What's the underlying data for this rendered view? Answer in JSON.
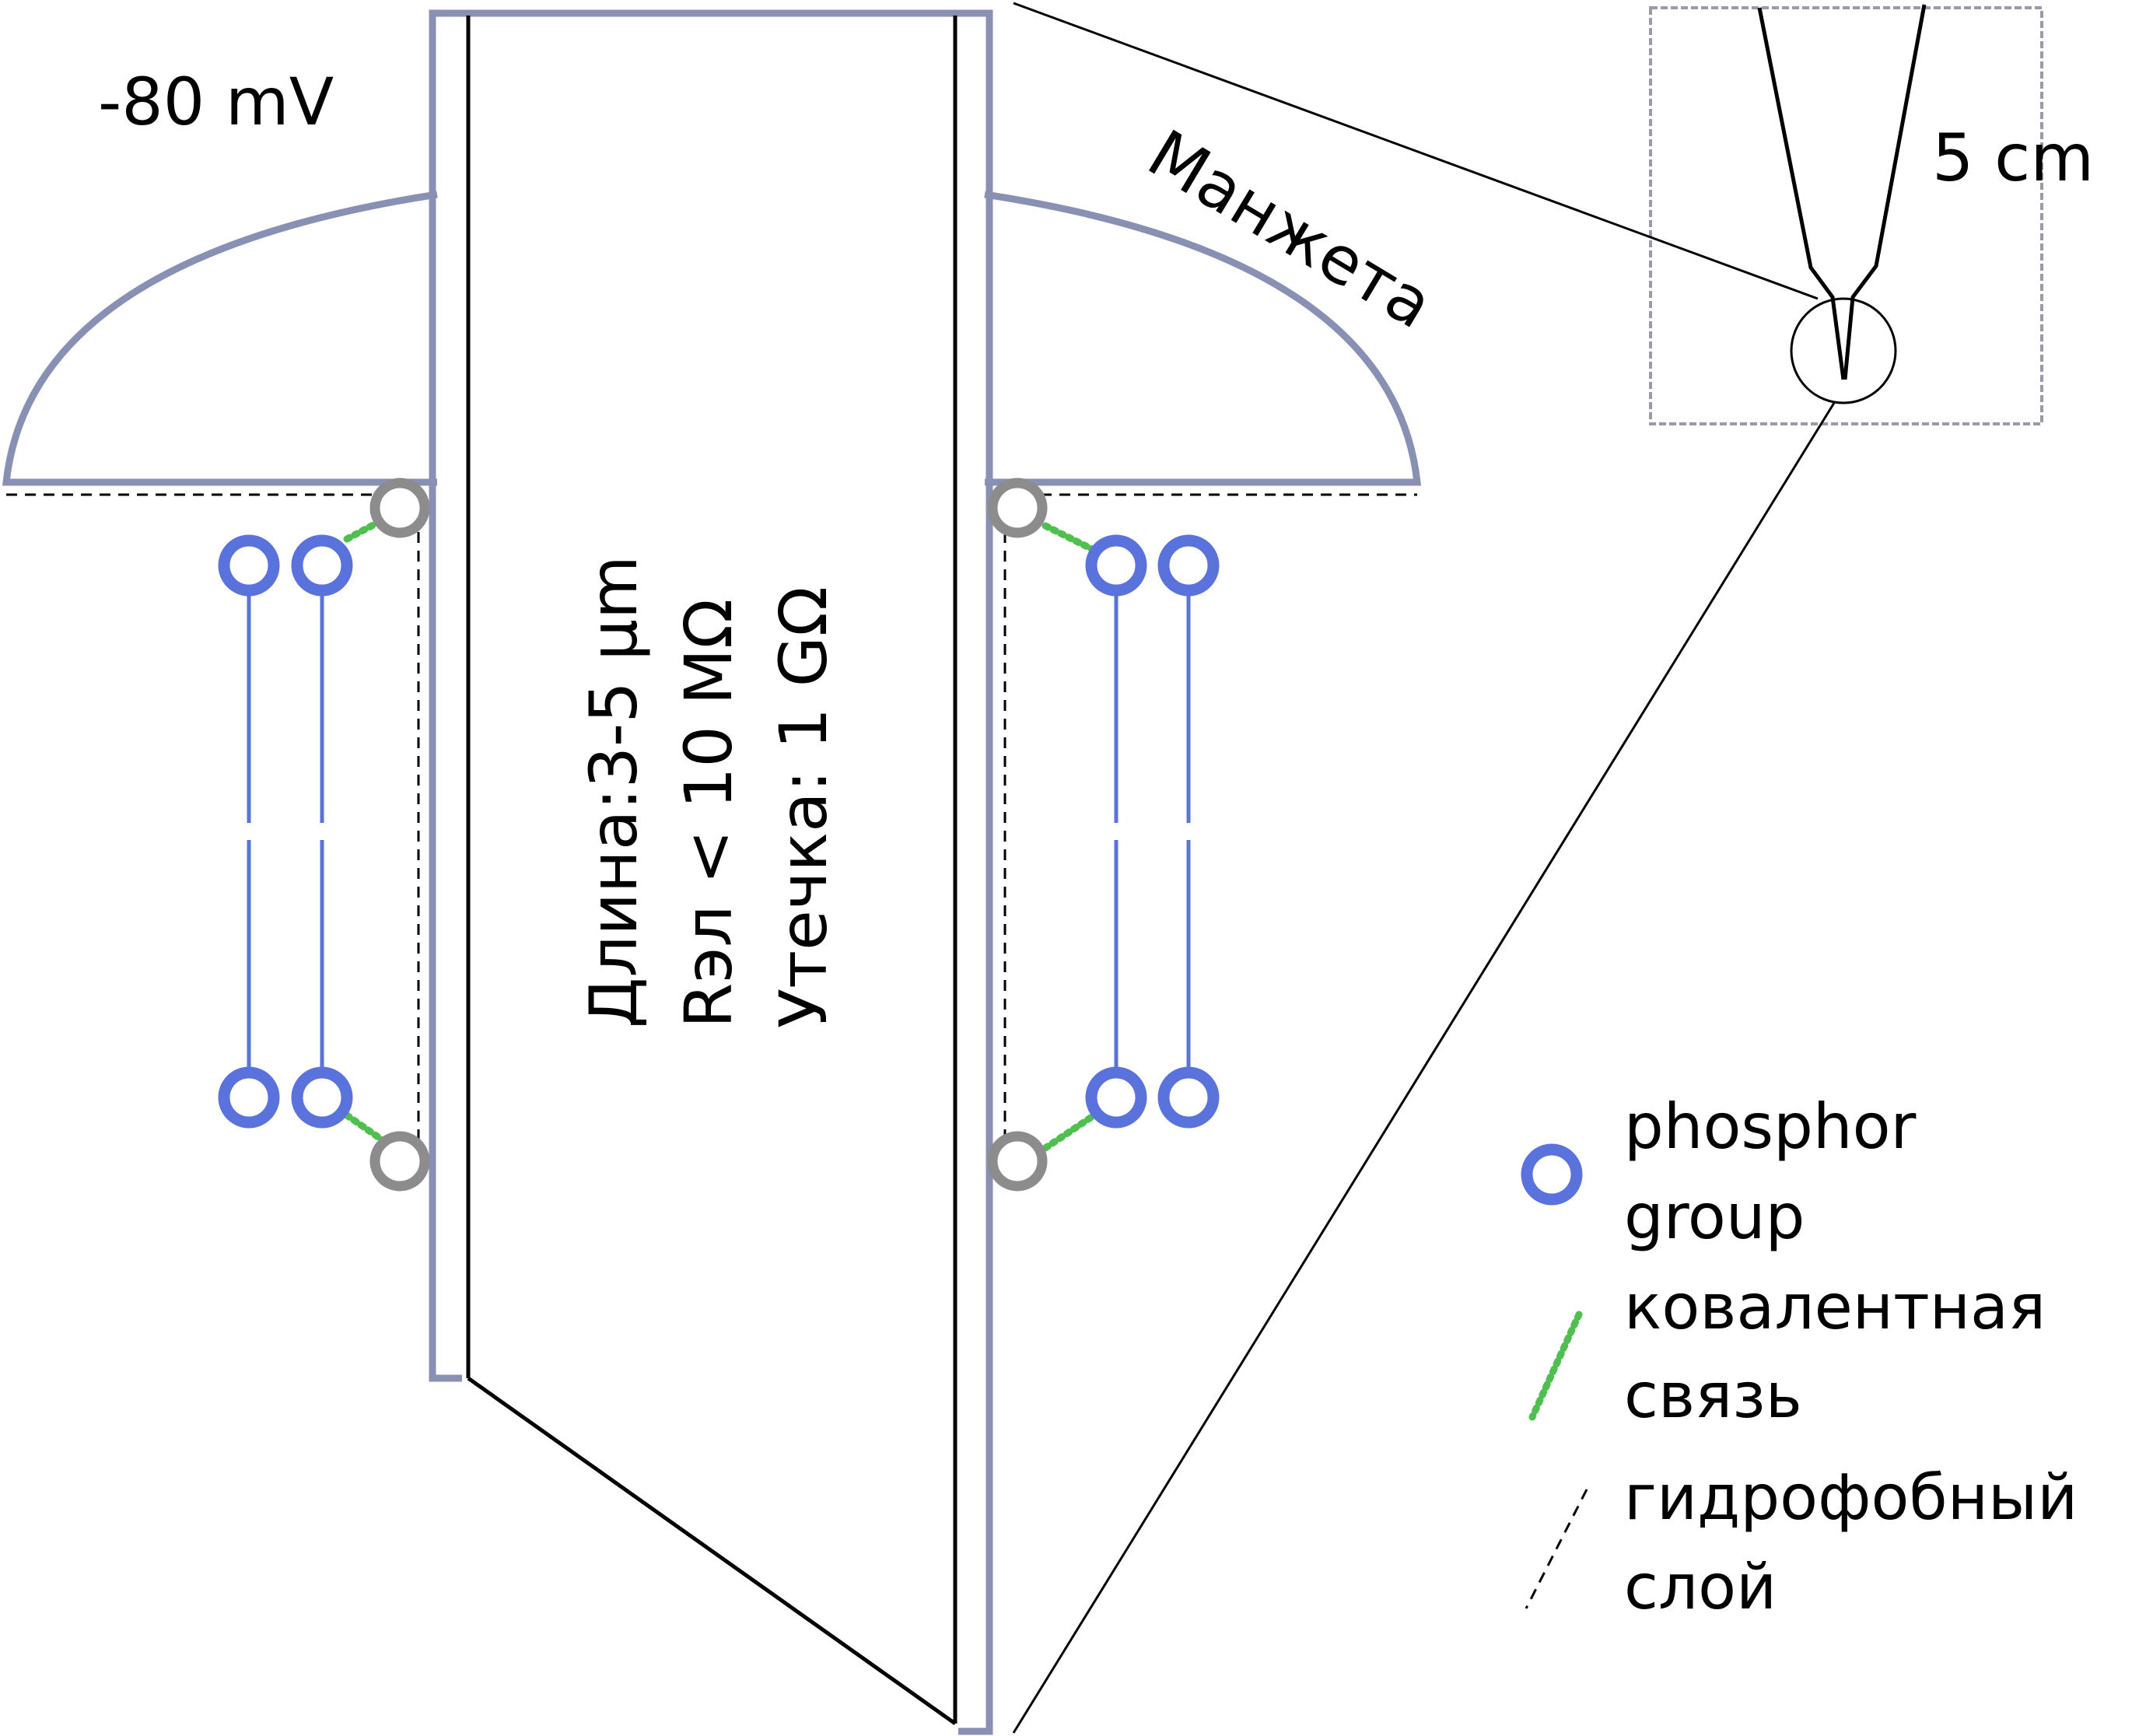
{
  "potential_label": "-80 mV",
  "cuff_label": "Манжета",
  "scale_label": "5 cm",
  "specs": {
    "length": "Длина:3-5 µm",
    "resistance": "Rэл < 10 MΩ",
    "leakage": "Утечка: 1 GΩ"
  },
  "legend": {
    "phosphor_line1": "phosphor",
    "phosphor_line2": "group",
    "covalent_line1": "ковалентная",
    "covalent_line2": "связь",
    "hydrophobic_line1": "гидрофобный",
    "hydrophobic_line2": "слой"
  },
  "colors": {
    "pipette_wall": "#8891b3",
    "phosphor": "#5a73dc",
    "anchor": "#8c8c8c",
    "covalent": "#4fc04f",
    "ink": "#000000"
  }
}
